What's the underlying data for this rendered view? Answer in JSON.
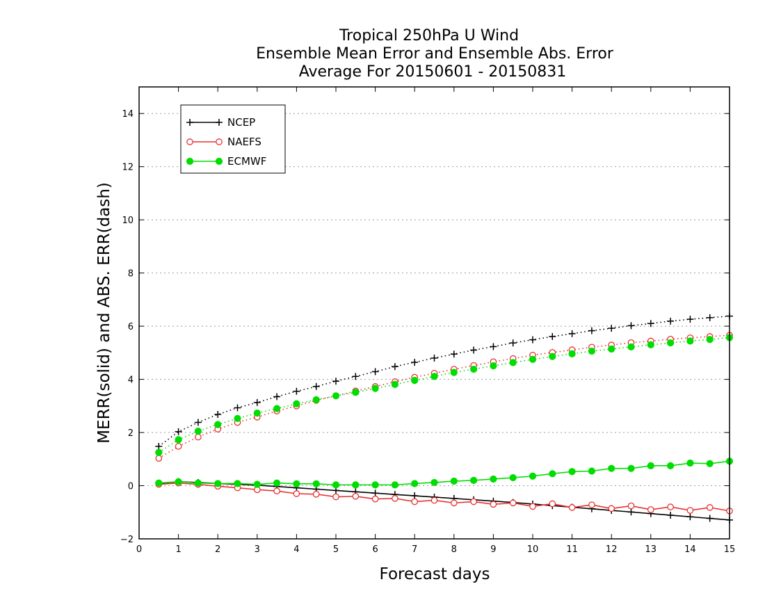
{
  "chart_data": {
    "type": "line",
    "title": "Tropical 250hPa U Wind",
    "subtitle": "Ensemble Mean Error and Ensemble Abs. Error",
    "subtitle2": "Average For 20150601 - 20150831",
    "xlabel": "Forecast days",
    "ylabel": "MERR(solid) and ABS. ERR(dash)",
    "xlim": [
      0,
      15
    ],
    "ylim": [
      -2,
      15
    ],
    "xticks": [
      0,
      1,
      2,
      3,
      4,
      5,
      6,
      7,
      8,
      9,
      10,
      11,
      12,
      13,
      14,
      15
    ],
    "yticks": [
      -2,
      0,
      2,
      4,
      6,
      8,
      10,
      12,
      14
    ],
    "grid": true,
    "legend_position": "top-left",
    "x": [
      0.5,
      1,
      1.5,
      2,
      2.5,
      3,
      3.5,
      4,
      4.5,
      5,
      5.5,
      6,
      6.5,
      7,
      7.5,
      8,
      8.5,
      9,
      9.5,
      10,
      10.5,
      11,
      11.5,
      12,
      12.5,
      13,
      13.5,
      14,
      14.5,
      15
    ],
    "series": [
      {
        "name": "NCEP",
        "color": "#000000",
        "marker": "plus",
        "merr": [
          0.08,
          0.15,
          0.12,
          0.08,
          0.05,
          0.02,
          -0.03,
          -0.08,
          -0.13,
          -0.18,
          -0.23,
          -0.28,
          -0.33,
          -0.38,
          -0.43,
          -0.48,
          -0.53,
          -0.58,
          -0.63,
          -0.69,
          -0.75,
          -0.81,
          -0.87,
          -0.93,
          -0.99,
          -1.05,
          -1.11,
          -1.17,
          -1.23,
          -1.29
        ],
        "abs_err": [
          1.48,
          2.03,
          2.38,
          2.68,
          2.93,
          3.13,
          3.35,
          3.55,
          3.73,
          3.93,
          4.11,
          4.29,
          4.48,
          4.64,
          4.8,
          4.95,
          5.1,
          5.23,
          5.37,
          5.49,
          5.61,
          5.72,
          5.83,
          5.92,
          6.02,
          6.1,
          6.19,
          6.26,
          6.32,
          6.38
        ]
      },
      {
        "name": "NAEFS",
        "color": "#e83030",
        "marker": "open-circle",
        "merr": [
          0.05,
          0.1,
          0.05,
          -0.02,
          -0.08,
          -0.15,
          -0.2,
          -0.3,
          -0.32,
          -0.42,
          -0.4,
          -0.5,
          -0.48,
          -0.6,
          -0.55,
          -0.65,
          -0.6,
          -0.7,
          -0.65,
          -0.78,
          -0.68,
          -0.82,
          -0.72,
          -0.86,
          -0.76,
          -0.9,
          -0.8,
          -0.93,
          -0.82,
          -0.95
        ],
        "abs_err": [
          1.03,
          1.48,
          1.83,
          2.13,
          2.38,
          2.58,
          2.81,
          3.0,
          3.21,
          3.38,
          3.56,
          3.73,
          3.91,
          4.08,
          4.23,
          4.38,
          4.52,
          4.66,
          4.78,
          4.91,
          5.01,
          5.11,
          5.21,
          5.29,
          5.38,
          5.44,
          5.51,
          5.56,
          5.61,
          5.66
        ]
      },
      {
        "name": "ECMWF",
        "color": "#00dd00",
        "marker": "filled-circle",
        "merr": [
          0.1,
          0.15,
          0.1,
          0.08,
          0.08,
          0.05,
          0.1,
          0.07,
          0.07,
          0.03,
          0.03,
          0.03,
          0.03,
          0.08,
          0.12,
          0.17,
          0.2,
          0.25,
          0.3,
          0.36,
          0.45,
          0.53,
          0.55,
          0.65,
          0.65,
          0.75,
          0.75,
          0.85,
          0.83,
          0.92
        ],
        "abs_err": [
          1.25,
          1.73,
          2.05,
          2.3,
          2.53,
          2.73,
          2.9,
          3.08,
          3.23,
          3.38,
          3.51,
          3.66,
          3.81,
          3.96,
          4.11,
          4.26,
          4.38,
          4.51,
          4.63,
          4.75,
          4.86,
          4.96,
          5.06,
          5.14,
          5.22,
          5.3,
          5.37,
          5.44,
          5.5,
          5.57
        ]
      }
    ]
  }
}
